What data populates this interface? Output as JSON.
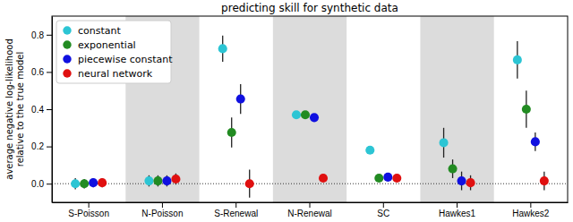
{
  "chart_data": {
    "type": "scatter",
    "title": "predicting skill for synthetic data",
    "y_label": [
      "average negative log-likelihood",
      "relative to the true model"
    ],
    "categories": [
      "S-Poisson",
      "N-Poisson",
      "S-Renewal",
      "N-Renewal",
      "SC",
      "Hawkes1",
      "Hawkes2"
    ],
    "series": [
      {
        "name": "constant",
        "color": "#2cc5d4",
        "marker": "circle",
        "values": [
          0.0,
          0.015,
          0.725,
          0.37,
          0.18,
          0.22,
          0.665
        ],
        "errors": [
          0.03,
          0.03,
          0.07,
          0.02,
          0.015,
          0.08,
          0.1
        ]
      },
      {
        "name": "exponential",
        "color": "#228b22",
        "marker": "circle",
        "values": [
          0.0,
          0.015,
          0.275,
          0.37,
          0.03,
          0.08,
          0.4
        ],
        "errors": [
          0.025,
          0.03,
          0.08,
          0.015,
          0.01,
          0.05,
          0.1
        ]
      },
      {
        "name": "piecewise constant",
        "color": "#1010e0",
        "marker": "circle",
        "values": [
          0.005,
          0.015,
          0.455,
          0.355,
          0.035,
          0.015,
          0.225
        ],
        "errors": [
          0.025,
          0.03,
          0.08,
          0.01,
          0.01,
          0.05,
          0.05
        ]
      },
      {
        "name": "neural network",
        "color": "#e01010",
        "marker": "circle",
        "values": [
          0.005,
          0.025,
          0.0,
          0.03,
          0.03,
          0.005,
          0.015
        ],
        "errors": [
          0.025,
          0.03,
          0.075,
          0.02,
          0.01,
          0.04,
          0.05
        ]
      }
    ],
    "ylim": [
      -0.1,
      0.9
    ],
    "yticks": [
      {
        "value": 0,
        "label": "0.0"
      },
      {
        "value": 0.2,
        "label": "0.2"
      },
      {
        "value": 0.4,
        "label": "0.4"
      },
      {
        "value": 0.6,
        "label": "0.6"
      },
      {
        "value": 0.8,
        "label": "0.8"
      }
    ],
    "grid": false,
    "legend": "upper left"
  }
}
